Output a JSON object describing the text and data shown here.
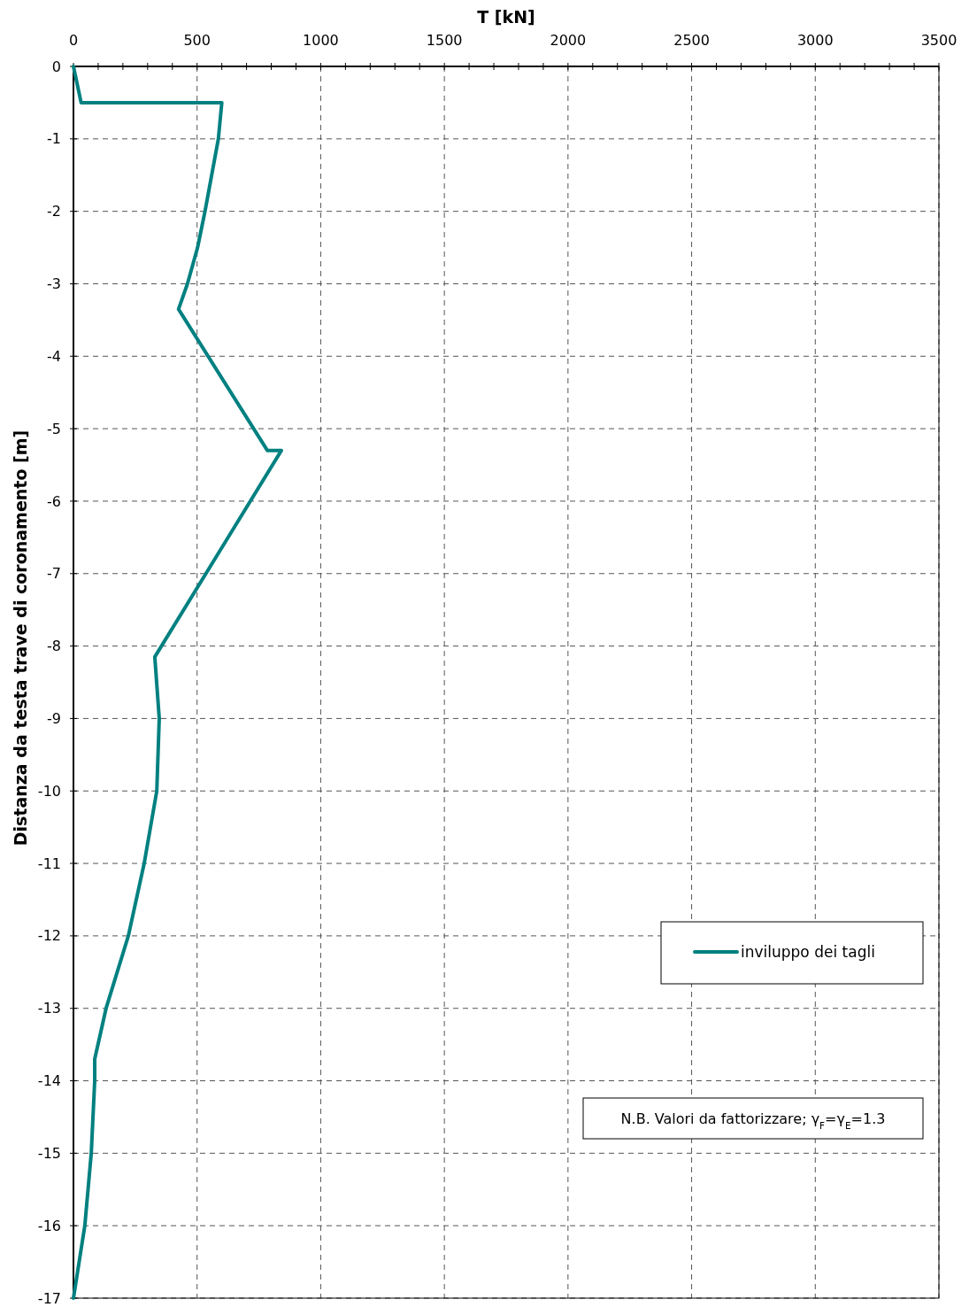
{
  "chart_data": {
    "type": "line",
    "xlabel": "T [kN]",
    "ylabel": "Distanza da testa trave di coronamento [m]",
    "xlim": [
      0,
      3500
    ],
    "xticks": [
      0,
      {
        "value": 100,
        "label": null
      },
      {
        "value": 200,
        "label": null
      },
      {
        "value": 300,
        "label": null
      },
      {
        "value": 400,
        "label": null
      },
      500,
      {
        "value": 600,
        "label": null
      },
      {
        "value": 700,
        "label": null
      },
      {
        "value": 800,
        "label": null
      },
      {
        "value": 900,
        "label": null
      },
      1000,
      {
        "value": 1100,
        "label": null
      },
      {
        "value": 1200,
        "label": null
      },
      {
        "value": 1300,
        "label": null
      },
      {
        "value": 1400,
        "label": null
      },
      1500,
      {
        "value": 1600,
        "label": null
      },
      {
        "value": 1700,
        "label": null
      },
      {
        "value": 1800,
        "label": null
      },
      {
        "value": 1900,
        "label": null
      },
      2000,
      {
        "value": 2100,
        "label": null
      },
      {
        "value": 2200,
        "label": null
      },
      {
        "value": 2300,
        "label": null
      },
      {
        "value": 2400,
        "label": null
      },
      2500,
      {
        "value": 2600,
        "label": null
      },
      {
        "value": 2700,
        "label": null
      },
      {
        "value": 2800,
        "label": null
      },
      {
        "value": 2900,
        "label": null
      },
      3000,
      {
        "value": 3100,
        "label": null
      },
      {
        "value": 3200,
        "label": null
      },
      {
        "value": 3300,
        "label": null
      },
      {
        "value": 3400,
        "label": null
      },
      3500
    ],
    "ylim": [
      -17,
      0
    ],
    "yticks": [
      -17,
      -16,
      -15,
      -14,
      -13,
      -12,
      -11,
      -10,
      -9,
      -8,
      -7,
      -6,
      -5,
      -4,
      -3,
      -2,
      -1,
      0
    ],
    "grid": true,
    "legend": "right",
    "line_style": "solid",
    "marker": "none",
    "series": [
      {
        "name": "inviluppo dei tagli",
        "color": "#008080",
        "x": [
          0,
          31,
          600,
          586,
          532,
          502,
          461,
          425,
          784,
          841,
          329,
          347,
          337,
          286,
          222,
          132,
          86,
          86,
          72,
          46,
          0
        ],
        "values": [
          0,
          -0.5,
          -0.5,
          -1,
          -2,
          -2.5,
          -3,
          -3.35,
          -5.3,
          -5.3,
          -8.15,
          -9,
          -10,
          -11,
          -12,
          -13,
          -13.7,
          -14,
          -15,
          -16,
          -17
        ]
      }
    ],
    "annotations": [
      "N.B. Valori da fattorizzare; γ$_{F}$=γ$_{E}$=1.3"
    ]
  }
}
